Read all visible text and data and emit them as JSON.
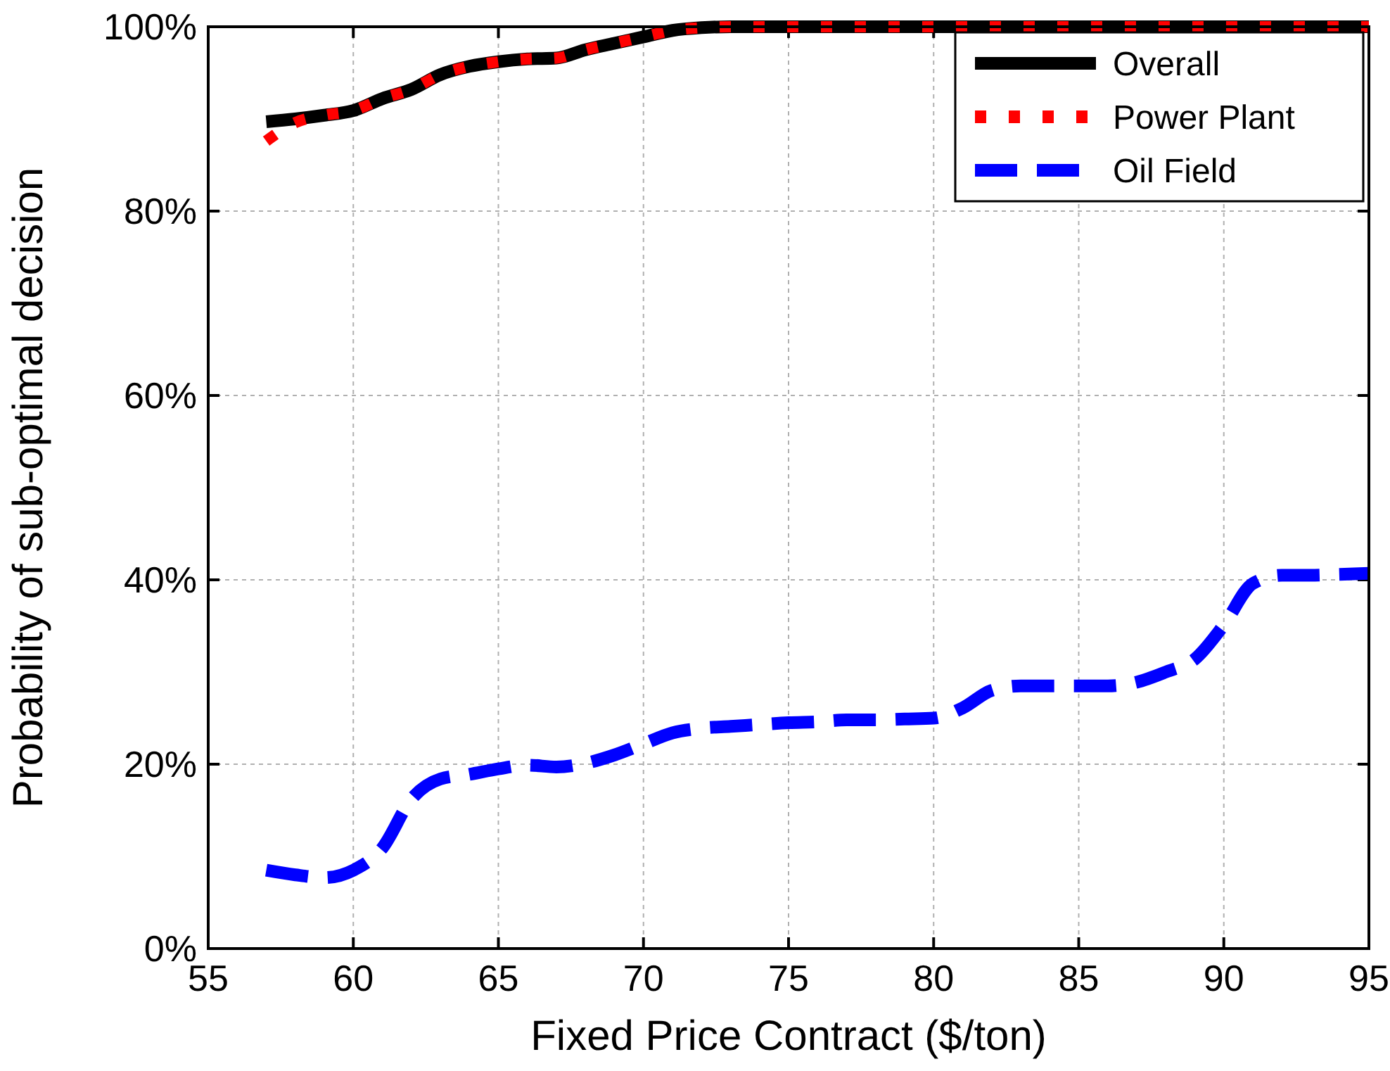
{
  "chart_data": {
    "type": "line",
    "xlabel": "Fixed Price Contract ($/ton)",
    "ylabel": "Probability of sub-optimal decision",
    "x": [
      57,
      58,
      59,
      60,
      61,
      62,
      63,
      64,
      65,
      66,
      67,
      68,
      69,
      70,
      71,
      72,
      73,
      74,
      75,
      76,
      77,
      78,
      79,
      80,
      81,
      82,
      83,
      84,
      85,
      86,
      87,
      88,
      89,
      90,
      91,
      92,
      93,
      94,
      95
    ],
    "series": [
      {
        "name": "Overall",
        "color": "#000000",
        "line_style": "solid",
        "values": [
          89.7,
          90.0,
          90.4,
          90.9,
          92.2,
          93.2,
          94.8,
          95.7,
          96.2,
          96.5,
          96.6,
          97.5,
          98.2,
          98.9,
          99.6,
          99.9,
          100,
          100,
          100,
          100,
          100,
          100,
          100,
          100,
          100,
          100,
          100,
          100,
          100,
          100,
          100,
          100,
          100,
          100,
          100,
          100,
          100,
          100,
          100
        ]
      },
      {
        "name": "Power Plant",
        "color": "#ff0000",
        "line_style": "dotted",
        "values": [
          87.6,
          89.6,
          90.4,
          90.9,
          92.2,
          93.2,
          94.8,
          95.7,
          96.2,
          96.5,
          96.6,
          97.5,
          98.2,
          98.9,
          99.6,
          99.9,
          100,
          100,
          100,
          100,
          100,
          100,
          100,
          100,
          100,
          100,
          100,
          100,
          100,
          100,
          100,
          100,
          100,
          100,
          100,
          100,
          100,
          100,
          100
        ]
      },
      {
        "name": "Oil Field",
        "color": "#0000ff",
        "line_style": "dashed",
        "values": [
          8.5,
          8.0,
          7.7,
          8.5,
          10.9,
          16.2,
          18.4,
          18.9,
          19.5,
          19.9,
          19.7,
          20.1,
          21.0,
          22.2,
          23.4,
          23.9,
          24.1,
          24.3,
          24.5,
          24.6,
          24.8,
          24.8,
          24.9,
          25.0,
          26.1,
          28.0,
          28.5,
          28.5,
          28.5,
          28.5,
          28.9,
          30.0,
          31.4,
          35.1,
          39.6,
          40.5,
          40.5,
          40.6,
          40.7
        ]
      }
    ],
    "xlim": [
      55,
      95
    ],
    "xticks": [
      55,
      60,
      65,
      70,
      75,
      80,
      85,
      90,
      95
    ],
    "ylim": [
      0,
      100
    ],
    "yticks": [
      {
        "value": 0,
        "label": "0%"
      },
      {
        "value": 20,
        "label": "20%"
      },
      {
        "value": 40,
        "label": "40%"
      },
      {
        "value": 60,
        "label": "60%"
      },
      {
        "value": 80,
        "label": "80%"
      },
      {
        "value": 100,
        "label": "100%"
      }
    ],
    "grid": true,
    "legend": "top right"
  }
}
